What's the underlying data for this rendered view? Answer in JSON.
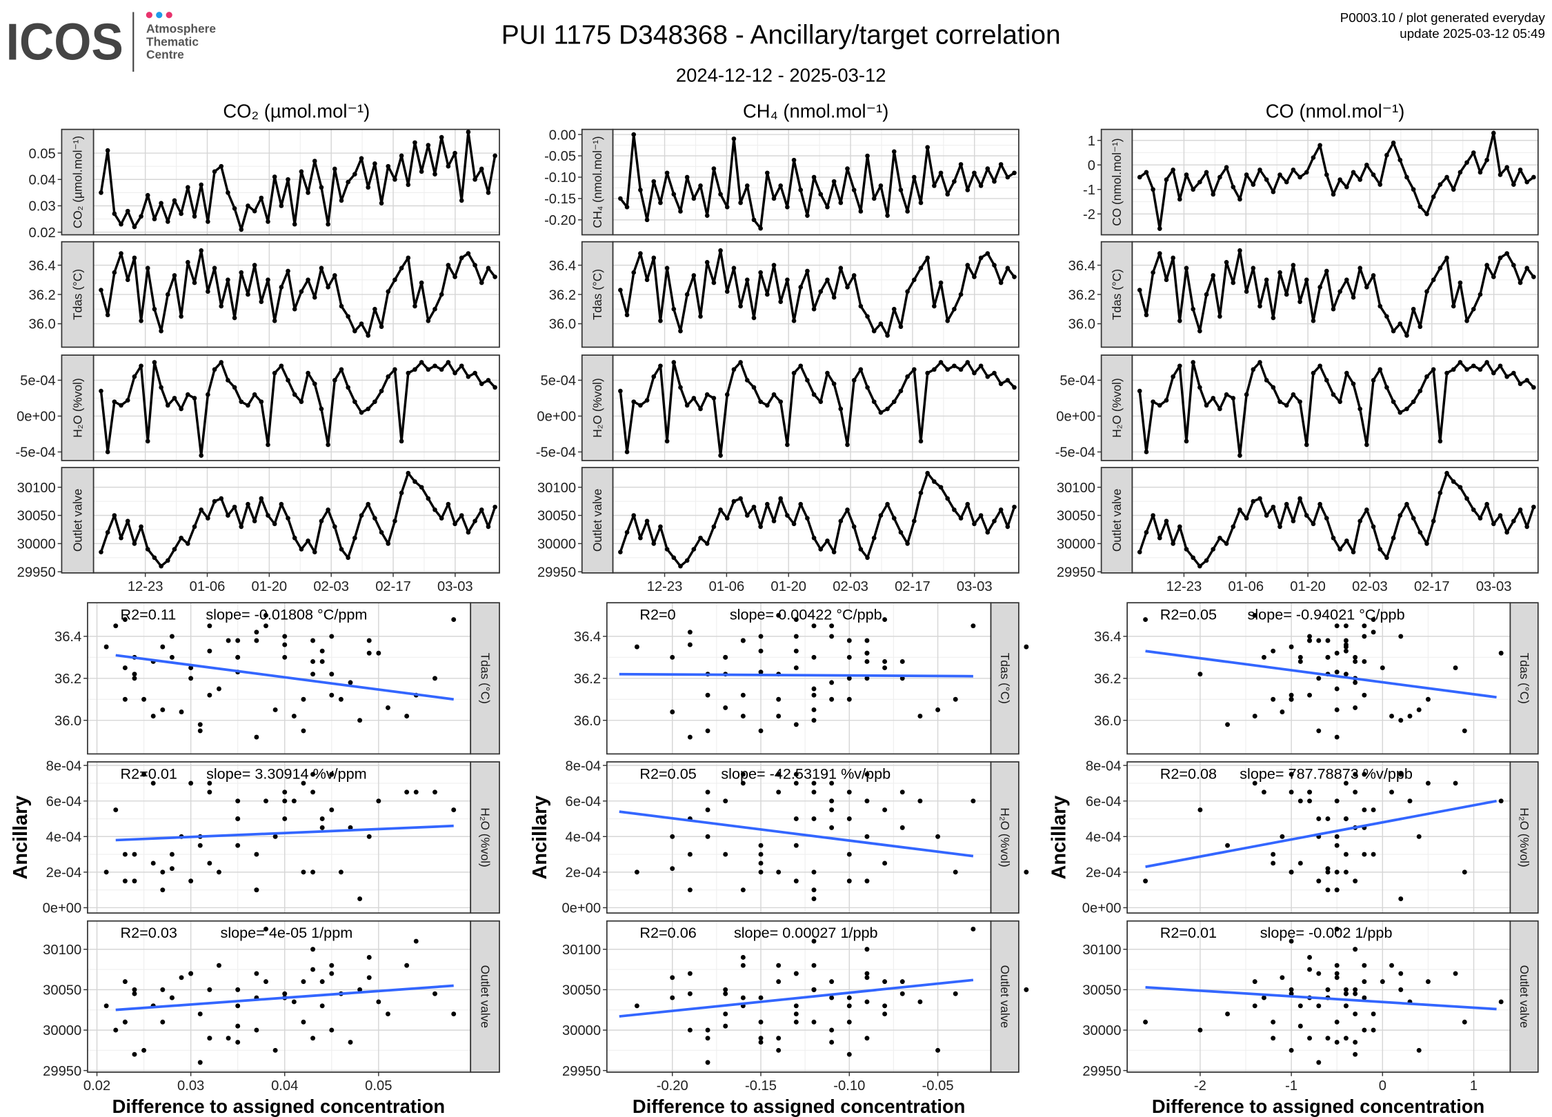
{
  "header": {
    "logo_text": "ICOS",
    "logo_subtitle": [
      "Atmosphere",
      "Thematic",
      "Centre"
    ],
    "logo_dot_colors": [
      "#e8336d",
      "#1e9be9",
      "#e8336d"
    ],
    "info_line1": "P0003.10 / plot generated everyday",
    "info_line2": "update  2025-03-12 05:49"
  },
  "chart_data": {
    "type": "line+scatter",
    "title": "PUI 1175 D348368 - Ancillary/target correlation",
    "subtitle": "2024-12-12 - 2025-03-12",
    "xlabel": "Difference to assigned concentration",
    "ylabel": "Ancillary",
    "date_start": "2024-12-12",
    "date_end": "2025-03-12",
    "date_ticks": [
      {
        "date": "2024-12-23",
        "label": "12-23"
      },
      {
        "date": "2025-01-06",
        "label": "01-06"
      },
      {
        "date": "2025-01-20",
        "label": "01-20"
      },
      {
        "date": "2025-02-03",
        "label": "02-03"
      },
      {
        "date": "2025-02-17",
        "label": "02-17"
      },
      {
        "date": "2025-03-03",
        "label": "03-03"
      }
    ],
    "line_color": "#000000",
    "fit_color": "#3366ff",
    "columns": [
      {
        "key": "co2",
        "title": "CO₂ (µmol.mol⁻¹)",
        "strip_label": "CO₂ (µmol.mol⁻¹)",
        "ts_ylim": [
          0.019,
          0.059
        ],
        "ts_yticks": [
          {
            "v": 0.02,
            "label": "0.02"
          },
          {
            "v": 0.03,
            "label": "0.03"
          },
          {
            "v": 0.04,
            "label": "0.04"
          },
          {
            "v": 0.05,
            "label": "0.05"
          }
        ],
        "scatter_xlim": [
          0.019,
          0.0598
        ],
        "scatter_xticks": [
          {
            "v": 0.02,
            "label": "0.02"
          },
          {
            "v": 0.03,
            "label": "0.03"
          },
          {
            "v": 0.04,
            "label": "0.04"
          },
          {
            "v": 0.05,
            "label": "0.05"
          }
        ],
        "fits": [
          {
            "r2": "R2=0.11",
            "slope": "slope= -0.01808 °C/ppm",
            "line": [
              [
                0.022,
                36.31
              ],
              [
                0.058,
                36.1
              ]
            ]
          },
          {
            "r2": "R2=0.01",
            "slope": "slope= 3.30914 %v/ppm",
            "line": [
              [
                0.022,
                0.00038
              ],
              [
                0.058,
                0.00046
              ]
            ]
          },
          {
            "r2": "R2=0.03",
            "slope": "slope= 4e-05 1/ppm",
            "line": [
              [
                0.022,
                30025
              ],
              [
                0.058,
                30055
              ]
            ]
          }
        ]
      },
      {
        "key": "ch4",
        "title": "CH₄ (nmol.mol⁻¹)",
        "strip_label": "CH₄ (nmol.mol⁻¹)",
        "ts_ylim": [
          -0.235,
          0.012
        ],
        "ts_yticks": [
          {
            "v": -0.2,
            "label": "-0.20"
          },
          {
            "v": -0.15,
            "label": "-0.15"
          },
          {
            "v": -0.1,
            "label": "-0.10"
          },
          {
            "v": -0.05,
            "label": "-0.05"
          },
          {
            "v": 0,
            "label": "0.00"
          }
        ],
        "scatter_xlim": [
          -0.237,
          -0.02
        ],
        "scatter_xticks": [
          {
            "v": -0.2,
            "label": "-0.20"
          },
          {
            "v": -0.15,
            "label": "-0.15"
          },
          {
            "v": -0.1,
            "label": "-0.10"
          },
          {
            "v": -0.05,
            "label": "-0.05"
          }
        ],
        "fits": [
          {
            "r2": "R2=0",
            "slope": "slope= 0.00422 °C/ppb",
            "line": [
              [
                -0.23,
                36.22
              ],
              [
                -0.03,
                36.21
              ]
            ]
          },
          {
            "r2": "R2=0.05",
            "slope": "slope= -42.53191 %v/ppb",
            "line": [
              [
                -0.23,
                0.00054
              ],
              [
                -0.03,
                0.00029
              ]
            ]
          },
          {
            "r2": "R2=0.06",
            "slope": "slope= 0.00027 1/ppb",
            "line": [
              [
                -0.23,
                30017
              ],
              [
                -0.03,
                30062
              ]
            ]
          }
        ]
      },
      {
        "key": "co",
        "title": "CO (nmol.mol⁻¹)",
        "strip_label": "CO (nmol.mol⁻¹)",
        "ts_ylim": [
          -2.85,
          1.45
        ],
        "ts_yticks": [
          {
            "v": -2,
            "label": "-2"
          },
          {
            "v": -1,
            "label": "-1"
          },
          {
            "v": 0,
            "label": "0"
          },
          {
            "v": 1,
            "label": "1"
          }
        ],
        "scatter_xlim": [
          -2.8,
          1.4
        ],
        "scatter_xticks": [
          {
            "v": -2,
            "label": "-2"
          },
          {
            "v": -1,
            "label": "-1"
          },
          {
            "v": 0,
            "label": "0"
          },
          {
            "v": 1,
            "label": "1"
          }
        ],
        "fits": [
          {
            "r2": "R2=0.05",
            "slope": "slope= -0.94021 °C/ppb",
            "line": [
              [
                -2.6,
                36.33
              ],
              [
                1.25,
                36.11
              ]
            ]
          },
          {
            "r2": "R2=0.08",
            "slope": "slope= 787.78873 %v/ppb",
            "line": [
              [
                -2.6,
                0.00023
              ],
              [
                1.25,
                0.0006
              ]
            ]
          },
          {
            "r2": "R2=0.01",
            "slope": "slope= -0.002 1/ppb",
            "line": [
              [
                -2.6,
                30053
              ],
              [
                1.25,
                30026
              ]
            ]
          }
        ]
      }
    ],
    "ancillary": [
      {
        "key": "tdas",
        "strip_label": "Tdas (°C)",
        "ts_ylim": [
          35.84,
          36.56
        ],
        "ts_yticks": [
          {
            "v": 36.0,
            "label": "36.0"
          },
          {
            "v": 36.2,
            "label": "36.2"
          },
          {
            "v": 36.4,
            "label": "36.4"
          }
        ],
        "scatter_ylim": [
          35.84,
          36.56
        ],
        "scatter_yticks": [
          {
            "v": 36.0,
            "label": "36.0"
          },
          {
            "v": 36.2,
            "label": "36.2"
          },
          {
            "v": 36.4,
            "label": "36.4"
          }
        ]
      },
      {
        "key": "h2o",
        "strip_label": "H₂O (%vol)",
        "ts_ylim": [
          -0.00062,
          0.00085
        ],
        "ts_yticks": [
          {
            "v": -0.0005,
            "label": "-5e-04"
          },
          {
            "v": 0,
            "label": "0e+00"
          },
          {
            "v": 0.0005,
            "label": "5e-04"
          }
        ],
        "scatter_ylim": [
          -3e-05,
          0.00082
        ],
        "scatter_yticks": [
          {
            "v": 0,
            "label": "0e+00"
          },
          {
            "v": 0.0002,
            "label": "2e-04"
          },
          {
            "v": 0.0004,
            "label": "4e-04"
          },
          {
            "v": 0.0006,
            "label": "6e-04"
          },
          {
            "v": 0.0008,
            "label": "8e-04"
          }
        ]
      },
      {
        "key": "outlet",
        "strip_label": "Outlet valve",
        "ts_ylim": [
          29948,
          30135
        ],
        "ts_yticks": [
          {
            "v": 29950,
            "label": "29950"
          },
          {
            "v": 30000,
            "label": "30000"
          },
          {
            "v": 30050,
            "label": "30050"
          },
          {
            "v": 30100,
            "label": "30100"
          }
        ],
        "scatter_ylim": [
          29948,
          30135
        ],
        "scatter_yticks": [
          {
            "v": 29950,
            "label": "29950"
          },
          {
            "v": 30000,
            "label": "30000"
          },
          {
            "v": 30050,
            "label": "30050"
          },
          {
            "v": 30100,
            "label": "30100"
          }
        ]
      }
    ],
    "series": {
      "co2": [
        0.035,
        0.051,
        0.027,
        0.023,
        0.028,
        0.022,
        0.026,
        0.034,
        0.025,
        0.031,
        0.024,
        0.032,
        0.027,
        0.037,
        0.026,
        0.038,
        0.024,
        0.043,
        0.045,
        0.035,
        0.029,
        0.021,
        0.03,
        0.028,
        0.033,
        0.024,
        0.041,
        0.03,
        0.04,
        0.023,
        0.043,
        0.035,
        0.047,
        0.037,
        0.023,
        0.044,
        0.032,
        0.039,
        0.042,
        0.048,
        0.037,
        0.046,
        0.031,
        0.045,
        0.04,
        0.049,
        0.038,
        0.054,
        0.043,
        0.053,
        0.042,
        0.056,
        0.045,
        0.05,
        0.032,
        0.058,
        0.04,
        0.044,
        0.035,
        0.049
      ],
      "ch4": [
        -0.15,
        -0.17,
        0.0,
        -0.13,
        -0.2,
        -0.11,
        -0.16,
        -0.09,
        -0.14,
        -0.18,
        -0.1,
        -0.15,
        -0.12,
        -0.19,
        -0.08,
        -0.14,
        -0.17,
        -0.01,
        -0.16,
        -0.12,
        -0.2,
        -0.22,
        -0.09,
        -0.15,
        -0.12,
        -0.17,
        -0.06,
        -0.13,
        -0.19,
        -0.1,
        -0.14,
        -0.17,
        -0.11,
        -0.16,
        -0.08,
        -0.13,
        -0.18,
        -0.05,
        -0.15,
        -0.12,
        -0.19,
        -0.04,
        -0.13,
        -0.18,
        -0.1,
        -0.16,
        -0.03,
        -0.12,
        -0.09,
        -0.14,
        -0.11,
        -0.07,
        -0.13,
        -0.09,
        -0.12,
        -0.08,
        -0.11,
        -0.07,
        -0.1,
        -0.09
      ],
      "co": [
        -0.5,
        -0.3,
        -1.0,
        -2.6,
        -0.6,
        -0.2,
        -1.4,
        -0.4,
        -1.0,
        -0.7,
        -0.3,
        -1.2,
        -0.5,
        -0.1,
        -0.9,
        -1.4,
        -0.4,
        -0.8,
        -0.2,
        -0.6,
        -1.1,
        -0.4,
        -0.7,
        -0.2,
        -0.5,
        -0.3,
        0.3,
        0.8,
        -0.4,
        -1.2,
        -0.6,
        -0.9,
        -0.3,
        -0.6,
        0.0,
        -0.4,
        -0.8,
        0.4,
        0.9,
        0.2,
        -0.5,
        -1.0,
        -1.7,
        -2.0,
        -1.3,
        -0.8,
        -0.5,
        -1.0,
        -0.3,
        0.1,
        0.5,
        -0.3,
        0.2,
        1.3,
        -0.4,
        -0.1,
        -0.8,
        -0.2,
        -0.7,
        -0.5
      ],
      "tdas": [
        36.23,
        36.06,
        36.35,
        36.48,
        36.3,
        36.45,
        36.02,
        36.38,
        36.1,
        35.95,
        36.2,
        36.33,
        36.05,
        36.42,
        36.28,
        36.5,
        36.22,
        36.38,
        36.12,
        36.3,
        36.04,
        36.35,
        36.2,
        36.4,
        36.15,
        36.3,
        36.02,
        36.25,
        36.36,
        36.1,
        36.22,
        36.3,
        36.18,
        36.38,
        36.25,
        36.33,
        36.12,
        36.05,
        35.95,
        36.0,
        35.92,
        36.1,
        35.98,
        36.22,
        36.3,
        36.38,
        36.45,
        36.12,
        36.28,
        36.02,
        36.1,
        36.2,
        36.4,
        36.32,
        36.45,
        36.48,
        36.4,
        36.28,
        36.38,
        36.32
      ],
      "h2o": [
        0.00035,
        -0.0005,
        0.0002,
        0.00015,
        0.00022,
        0.00055,
        0.0007,
        -0.00035,
        0.00075,
        0.0004,
        0.00015,
        0.00025,
        0.0001,
        0.0003,
        0.00025,
        -0.00055,
        0.0003,
        0.00065,
        0.00075,
        0.0005,
        0.0004,
        0.0002,
        0.00015,
        0.0003,
        0.0002,
        -0.0004,
        0.0006,
        0.0007,
        0.0005,
        0.0003,
        0.0002,
        0.0006,
        0.00045,
        0.0001,
        -0.0004,
        0.0005,
        0.00065,
        0.0004,
        0.0002,
        5e-05,
        0.0001,
        0.0002,
        0.00035,
        0.00055,
        0.00065,
        -0.00035,
        0.0006,
        0.00065,
        0.00075,
        0.00065,
        0.0007,
        0.00065,
        0.00075,
        0.0006,
        0.0007,
        0.00055,
        0.0006,
        0.00045,
        0.0005,
        0.0004
      ],
      "outlet": [
        29985,
        30020,
        30050,
        30010,
        30040,
        30000,
        30030,
        29990,
        29975,
        29960,
        29970,
        29990,
        30010,
        30000,
        30030,
        30060,
        30045,
        30075,
        30080,
        30050,
        30065,
        30030,
        30070,
        30040,
        30080,
        30050,
        30035,
        30070,
        30045,
        30010,
        29990,
        30005,
        29985,
        30040,
        30060,
        30030,
        29990,
        29975,
        30010,
        30050,
        30070,
        30045,
        30020,
        30000,
        30040,
        30090,
        30125,
        30110,
        30100,
        30080,
        30060,
        30045,
        30070,
        30035,
        30050,
        30020,
        30040,
        30060,
        30030,
        30065
      ]
    }
  }
}
